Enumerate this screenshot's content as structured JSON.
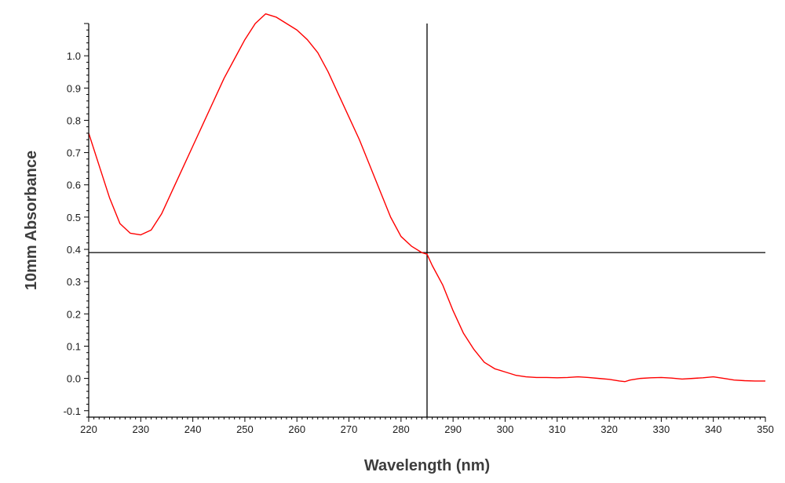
{
  "chart_data": {
    "type": "line",
    "title": "",
    "xlabel": "Wavelength (nm)",
    "ylabel": "10mm Absorbance",
    "xlim": [
      220,
      350
    ],
    "ylim": [
      -0.12,
      1.1
    ],
    "x_ticks": [
      220,
      230,
      240,
      250,
      260,
      270,
      280,
      290,
      300,
      310,
      320,
      330,
      340,
      350
    ],
    "y_ticks": [
      -0.1,
      0.0,
      0.1,
      0.2,
      0.3,
      0.4,
      0.5,
      0.6,
      0.7,
      0.8,
      0.9,
      1.0
    ],
    "y_tick_labels": [
      "-0.1",
      "0.0",
      "0.1",
      "0.2",
      "0.3",
      "0.4",
      "0.5",
      "0.6",
      "0.7",
      "0.8",
      "0.9",
      "1.0"
    ],
    "grid": false,
    "legend": "none",
    "series": [
      {
        "color": "#ff0000",
        "x": [
          220,
          222,
          224,
          226,
          228,
          230,
          232,
          234,
          236,
          238,
          240,
          242,
          244,
          246,
          248,
          250,
          252,
          254,
          256,
          258,
          260,
          262,
          264,
          266,
          268,
          270,
          272,
          274,
          276,
          278,
          280,
          282,
          284,
          285,
          286,
          288,
          290,
          292,
          294,
          296,
          298,
          300,
          302,
          304,
          306,
          308,
          310,
          312,
          314,
          316,
          318,
          320,
          322,
          323,
          324,
          326,
          328,
          330,
          332,
          334,
          336,
          338,
          340,
          342,
          344,
          346,
          348,
          350
        ],
        "y": [
          0.76,
          0.66,
          0.56,
          0.48,
          0.45,
          0.445,
          0.46,
          0.51,
          0.58,
          0.65,
          0.72,
          0.79,
          0.86,
          0.93,
          0.99,
          1.05,
          1.1,
          1.13,
          1.12,
          1.1,
          1.08,
          1.05,
          1.01,
          0.95,
          0.88,
          0.81,
          0.74,
          0.66,
          0.58,
          0.5,
          0.44,
          0.41,
          0.39,
          0.385,
          0.35,
          0.29,
          0.21,
          0.14,
          0.09,
          0.05,
          0.03,
          0.02,
          0.01,
          0.005,
          0.003,
          0.003,
          0.002,
          0.003,
          0.005,
          0.003,
          0.0,
          -0.003,
          -0.008,
          -0.01,
          -0.005,
          0.0,
          0.002,
          0.003,
          0.001,
          -0.002,
          0.0,
          0.002,
          0.005,
          0.0,
          -0.005,
          -0.007,
          -0.008,
          -0.008
        ]
      }
    ],
    "crosshair": {
      "x": 285,
      "y": 0.39,
      "color": "#000000"
    },
    "axis_color": "#000000",
    "text_color": "#1a1a1a",
    "axis_title_color": "#3d3d3d"
  }
}
